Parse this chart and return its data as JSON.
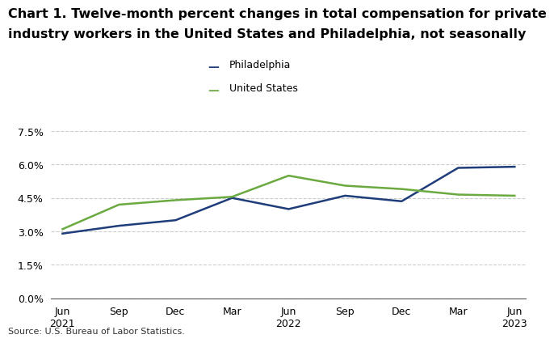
{
  "title_line1": "Chart 1. Twelve-month percent changes in total compensation for private",
  "title_line2": "industry workers in the United States and Philadelphia, not seasonally",
  "source": "Source: U.S. Bureau of Labor Statistics.",
  "x_labels": [
    "Jun\n2021",
    "Sep",
    "Dec",
    "Mar",
    "Jun\n2022",
    "Sep",
    "Dec",
    "Mar",
    "Jun\n2023"
  ],
  "philadelphia": [
    2.9,
    3.25,
    3.5,
    4.5,
    4.0,
    4.6,
    4.35,
    5.85,
    5.9
  ],
  "united_states": [
    3.1,
    4.2,
    4.4,
    4.55,
    5.5,
    5.05,
    4.9,
    4.65,
    4.6
  ],
  "philly_color": "#1f3d7a",
  "us_color": "#6aaa40",
  "ylim": [
    0.0,
    7.5
  ],
  "yticks": [
    0.0,
    1.5,
    3.0,
    4.5,
    6.0,
    7.5
  ],
  "ytick_labels": [
    "0.0%",
    "1.5%",
    "3.0%",
    "4.5%",
    "6.0%",
    "7.5%"
  ],
  "legend_philly": "Philadelphia",
  "legend_us": "United States",
  "line_width": 1.8,
  "background_color": "#ffffff",
  "title_fontsize": 11.5,
  "tick_fontsize": 9,
  "legend_fontsize": 9,
  "source_fontsize": 8
}
